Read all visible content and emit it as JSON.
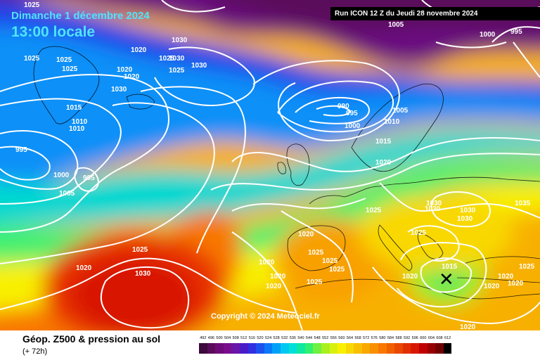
{
  "header": {
    "date_label": "Dimanche 1 décembre 2024",
    "time_label": "13:00 locale",
    "run_label": "Run ICON 12 Z du Jeudi 28 novembre 2024"
  },
  "copyright": "Copyright © 2024 Meteociel.fr",
  "footer": {
    "title": "Géop. Z500 & pression au sol",
    "subtitle": "(+ 72h)"
  },
  "scale": {
    "values": [
      "492",
      "496",
      "500",
      "504",
      "508",
      "512",
      "516",
      "520",
      "524",
      "528",
      "532",
      "536",
      "540",
      "544",
      "548",
      "552",
      "556",
      "560",
      "564",
      "568",
      "572",
      "576",
      "580",
      "584",
      "588",
      "592",
      "596",
      "600",
      "604",
      "608",
      "612"
    ],
    "colors": [
      "#3c0a3c",
      "#5a0a5a",
      "#6e0a78",
      "#7a0c8c",
      "#6a14a8",
      "#4a1cc8",
      "#3030e0",
      "#1e50f0",
      "#0a78f8",
      "#00a0f8",
      "#00c8f0",
      "#00e0d8",
      "#10e8a0",
      "#30f070",
      "#70f040",
      "#a8f020",
      "#d8f010",
      "#f8f000",
      "#f8d800",
      "#f8c000",
      "#f8a800",
      "#f89000",
      "#f87800",
      "#f06000",
      "#e84800",
      "#e03000",
      "#d81800",
      "#c00000",
      "#980000",
      "#700000",
      "#000000"
    ]
  },
  "pressure_labels": [
    {
      "text": "1025"
    },
    {
      "text": "1005"
    },
    {
      "text": "1000"
    },
    {
      "text": "995"
    },
    {
      "text": "1025"
    },
    {
      "text": "1025"
    },
    {
      "text": "1025"
    },
    {
      "text": "1020"
    },
    {
      "text": "1030"
    },
    {
      "text": "1030"
    },
    {
      "text": "1030"
    },
    {
      "text": "1025"
    },
    {
      "text": "1020"
    },
    {
      "text": "1020"
    },
    {
      "text": "1025"
    },
    {
      "text": "1030"
    },
    {
      "text": "1015"
    },
    {
      "text": "1010"
    },
    {
      "text": "1010"
    },
    {
      "text": "995"
    },
    {
      "text": "1000"
    },
    {
      "text": "995"
    },
    {
      "text": "1005"
    },
    {
      "text": "990"
    },
    {
      "text": "995"
    },
    {
      "text": "1005"
    },
    {
      "text": "1000"
    },
    {
      "text": "1010"
    },
    {
      "text": "1015"
    },
    {
      "text": "1020"
    },
    {
      "text": "1025"
    },
    {
      "text": "1030"
    },
    {
      "text": "1030"
    },
    {
      "text": "1030"
    },
    {
      "text": "1030"
    },
    {
      "text": "1035"
    },
    {
      "text": "1025"
    },
    {
      "text": "1020"
    },
    {
      "text": "1025"
    },
    {
      "text": "1025"
    },
    {
      "text": "1025"
    },
    {
      "text": "1020"
    },
    {
      "text": "1020"
    },
    {
      "text": "1020"
    },
    {
      "text": "1025"
    },
    {
      "text": "1025"
    },
    {
      "text": "1020"
    },
    {
      "text": "1030"
    },
    {
      "text": "1020"
    },
    {
      "text": "1015"
    },
    {
      "text": "1020"
    },
    {
      "text": "1020"
    },
    {
      "text": "1020"
    },
    {
      "text": "1025"
    },
    {
      "text": "1020"
    }
  ],
  "features": {
    "low_marker_icon": "x-mark-icon"
  }
}
